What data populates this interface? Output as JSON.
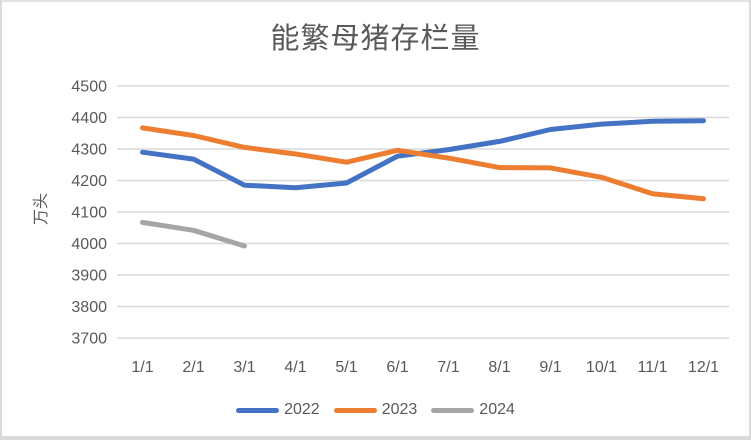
{
  "window": {
    "background": "#ffffff",
    "border_color": "#d9d9d9"
  },
  "chart_data": {
    "type": "line",
    "title": "能繁母猪存栏量",
    "ylabel": "万头",
    "xlabel": "",
    "categories": [
      "1/1",
      "2/1",
      "3/1",
      "4/1",
      "5/1",
      "6/1",
      "7/1",
      "8/1",
      "9/1",
      "10/1",
      "11/1",
      "12/1"
    ],
    "series": [
      {
        "name": "2022",
        "color": "#4472C4",
        "values": [
          4290,
          4268,
          4185,
          4177,
          4192,
          4277,
          4298,
          4324,
          4362,
          4379,
          4388,
          4390
        ]
      },
      {
        "name": "2023",
        "color": "#ED7D31",
        "values": [
          4367,
          4343,
          4305,
          4284,
          4258,
          4296,
          4271,
          4241,
          4240,
          4210,
          4158,
          4142
        ]
      },
      {
        "name": "2024",
        "color": "#A5A5A5",
        "values": [
          4067,
          4042,
          3992,
          null,
          null,
          null,
          null,
          null,
          null,
          null,
          null,
          null
        ]
      }
    ],
    "ylim": [
      3700,
      4500
    ],
    "ytick_step": 100,
    "grid": true,
    "gridline_color": "#D9D9D9",
    "text_color": "#595959",
    "legend_position": "bottom"
  }
}
